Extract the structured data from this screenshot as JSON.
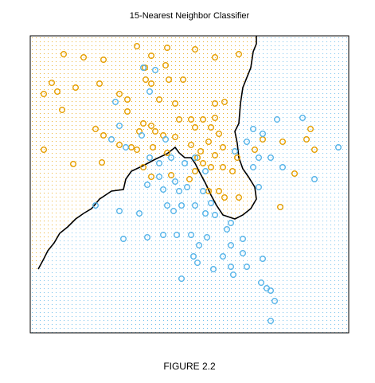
{
  "chart_data": {
    "type": "scatter",
    "title": "15-Nearest Neighbor Classifier",
    "caption": "FIGURE 2.2",
    "xlim": [
      0,
      400
    ],
    "ylim": [
      0,
      373
    ],
    "series": [
      {
        "color": "#E69F00",
        "x": [
          134,
          172,
          42,
          67,
          152,
          207,
          232,
          262,
          92,
          144,
          170,
          174,
          192,
          27,
          57,
          87,
          145,
          152,
          17,
          34,
          112,
          122,
          162,
          182,
          232,
          244,
          40,
          122,
          142,
          152,
          187,
          202,
          217,
          232,
          82,
          92,
          137,
          157,
          167,
          182,
          207,
          227,
          237,
          112,
          127,
          134,
          154,
          172,
          202,
          214,
          224,
          232,
          242,
          217,
          227,
          242,
          207,
          152,
          177,
          200,
          224,
          237,
          244,
          262,
          17,
          54,
          90,
          254,
          282,
          292,
          317,
          352,
          347,
          357,
          332,
          314,
          142,
          210,
          260
        ],
        "values": [
          360,
          358,
          350,
          346,
          348,
          356,
          346,
          350,
          343,
          333,
          336,
          318,
          318,
          314,
          308,
          313,
          318,
          313,
          300,
          303,
          300,
          293,
          293,
          288,
          288,
          290,
          280,
          278,
          263,
          260,
          268,
          268,
          268,
          270,
          256,
          248,
          253,
          253,
          248,
          246,
          258,
          258,
          250,
          236,
          233,
          230,
          233,
          226,
          236,
          228,
          240,
          223,
          233,
          213,
          208,
          208,
          203,
          196,
          198,
          193,
          178,
          178,
          170,
          170,
          230,
          212,
          214,
          203,
          230,
          243,
          240,
          256,
          243,
          230,
          200,
          158,
          208,
          220,
          220
        ]
      },
      {
        "color": "#56B4E9",
        "x": [
          142,
          157,
          107,
          150,
          112,
          140,
          102,
          120,
          170,
          177,
          150,
          162,
          194,
          207,
          220,
          162,
          182,
          197,
          217,
          147,
          167,
          172,
          180,
          190,
          207,
          220,
          227,
          232,
          252,
          257,
          280,
          292,
          310,
          272,
          287,
          280,
          302,
          287,
          317,
          342,
          387,
          357,
          137,
          117,
          147,
          167,
          184,
          202,
          222,
          247,
          212,
          252,
          267,
          242,
          272,
          230,
          205,
          210,
          252,
          292,
          190,
          255,
          290,
          297,
          302,
          307,
          302,
          82,
          112,
          187,
          267
        ],
        "values": [
          333,
          330,
          290,
          303,
          260,
          248,
          243,
          233,
          243,
          220,
          220,
          213,
          213,
          220,
          203,
          196,
          190,
          183,
          178,
          186,
          180,
          160,
          153,
          160,
          160,
          150,
          163,
          148,
          138,
          228,
          256,
          250,
          268,
          240,
          220,
          208,
          220,
          183,
          208,
          270,
          233,
          193,
          150,
          118,
          120,
          123,
          123,
          123,
          120,
          130,
          110,
          110,
          100,
          96,
          83,
          80,
          96,
          88,
          83,
          93,
          68,
          73,
          63,
          56,
          53,
          40,
          15,
          160,
          153,
          178,
          118
        ]
      }
    ],
    "boundary": {
      "color": "#000000",
      "x": [
        10,
        17,
        22,
        30,
        37,
        47,
        57,
        67,
        77,
        87,
        102,
        117,
        120,
        127,
        142,
        157,
        172,
        182,
        187,
        194,
        202,
        207,
        212,
        220,
        227,
        234,
        242,
        257,
        267,
        277,
        284,
        282,
        274,
        267,
        262,
        260,
        257,
        262,
        264,
        267,
        277,
        280,
        284,
        284
      ],
      "values": [
        80,
        93,
        103,
        113,
        125,
        133,
        143,
        150,
        156,
        168,
        178,
        180,
        193,
        203,
        210,
        218,
        225,
        233,
        226,
        220,
        220,
        213,
        203,
        188,
        173,
        160,
        148,
        143,
        148,
        156,
        168,
        183,
        196,
        206,
        220,
        238,
        253,
        263,
        288,
        308,
        333,
        353,
        363,
        373
      ]
    }
  }
}
